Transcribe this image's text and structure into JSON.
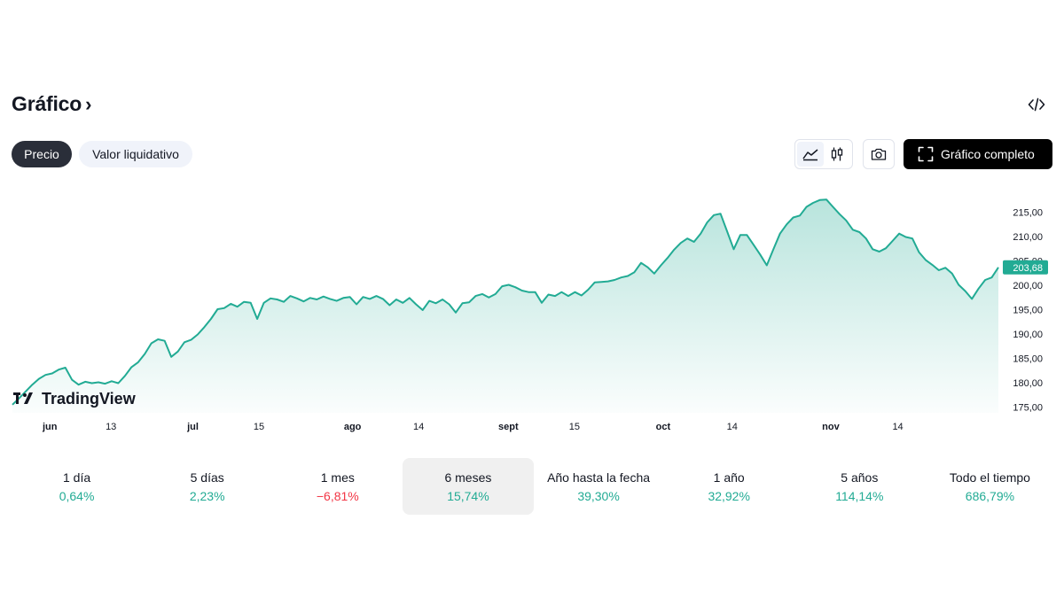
{
  "header": {
    "title": "Gráfico",
    "chevron": "›"
  },
  "icons": {
    "embed": "code-icon",
    "area": "area-chart-icon",
    "candles": "candlestick-icon",
    "camera": "camera-icon",
    "fullscreen": "fullscreen-icon"
  },
  "tabs": {
    "price": "Precio",
    "nav": "Valor liquidativo"
  },
  "toolbar": {
    "full_chart_label": "Gráfico completo"
  },
  "colors": {
    "line": "#22ab94",
    "positive": "#22ab94",
    "negative": "#f23645"
  },
  "chart_data": {
    "type": "area",
    "watermark": "TradingView",
    "x_tick_labels": [
      {
        "label": "jun",
        "bold": true,
        "t": 0.02
      },
      {
        "label": "13",
        "bold": false,
        "t": 0.1
      },
      {
        "label": "jul",
        "bold": true,
        "t": 0.183
      },
      {
        "label": "15",
        "bold": false,
        "t": 0.25
      },
      {
        "label": "ago",
        "bold": true,
        "t": 0.345
      },
      {
        "label": "14",
        "bold": false,
        "t": 0.412
      },
      {
        "label": "sept",
        "bold": true,
        "t": 0.503
      },
      {
        "label": "15",
        "bold": false,
        "t": 0.57
      },
      {
        "label": "oct",
        "bold": true,
        "t": 0.66
      },
      {
        "label": "14",
        "bold": false,
        "t": 0.73
      },
      {
        "label": "nov",
        "bold": true,
        "t": 0.83
      },
      {
        "label": "14",
        "bold": false,
        "t": 0.898
      }
    ],
    "y_ticks": [
      175,
      180,
      185,
      190,
      195,
      200,
      205,
      210,
      215
    ],
    "y_tick_labels": [
      "175,00",
      "180,00",
      "185,00",
      "190,00",
      "195,00",
      "200,00",
      "205,00",
      "210,00",
      "215,00"
    ],
    "ylim": [
      174,
      219
    ],
    "last_value": 203.68,
    "last_value_label": "203,68",
    "series": [
      {
        "values": [
          175.5,
          176.8,
          178.2,
          179.6,
          180.8,
          181.6,
          181.9,
          182.7,
          183.1,
          180.6,
          179.6,
          180.2,
          179.9,
          180.1,
          179.8,
          180.3,
          179.9,
          181.4,
          183.2,
          184.2,
          185.9,
          188.1,
          188.9,
          188.6,
          185.3,
          186.4,
          188.3,
          188.8,
          189.9,
          191.4,
          193.1,
          195.1,
          195.3,
          196.2,
          195.6,
          196.6,
          196.4,
          193.1,
          196.4,
          197.3,
          197.1,
          196.6,
          197.8,
          197.3,
          196.7,
          197.4,
          197.1,
          197.7,
          197.2,
          196.8,
          197.4,
          197.6,
          196.1,
          197.6,
          197.2,
          197.8,
          197.2,
          195.9,
          197.1,
          196.4,
          197.4,
          196.1,
          194.9,
          196.8,
          196.3,
          197.1,
          196.1,
          194.4,
          196.3,
          196.5,
          197.8,
          198.2,
          197.5,
          198.2,
          199.8,
          200.1,
          199.6,
          198.9,
          198.6,
          198.6,
          196.4,
          198.1,
          197.8,
          198.6,
          197.8,
          198.6,
          197.9,
          199.1,
          200.6,
          200.7,
          200.8,
          201.1,
          201.6,
          201.9,
          202.7,
          204.6,
          203.7,
          202.4,
          204.1,
          205.6,
          207.3,
          208.7,
          209.6,
          208.9,
          210.6,
          212.9,
          214.4,
          214.7,
          211.1,
          207.4,
          210.3,
          210.3,
          208.3,
          206.3,
          204.1,
          207.4,
          210.6,
          212.5,
          213.9,
          214.3,
          216.1,
          216.9,
          217.5,
          217.6,
          216.1,
          214.6,
          213.3,
          211.4,
          210.9,
          209.6,
          207.4,
          206.9,
          207.6,
          209.1,
          210.6,
          209.9,
          209.6,
          206.8,
          205.2,
          204.2,
          203.1,
          203.6,
          202.4,
          200.1,
          198.8,
          197.2,
          199.3,
          201.1,
          201.6,
          203.68
        ]
      }
    ]
  },
  "periods": [
    {
      "label": "1 día",
      "value": "0,64%",
      "trend": "pos",
      "active": false
    },
    {
      "label": "5 días",
      "value": "2,23%",
      "trend": "pos",
      "active": false
    },
    {
      "label": "1 mes",
      "value": "−6,81%",
      "trend": "neg",
      "active": false
    },
    {
      "label": "6 meses",
      "value": "15,74%",
      "trend": "pos",
      "active": true
    },
    {
      "label": "Año hasta la fecha",
      "value": "39,30%",
      "trend": "pos",
      "active": false
    },
    {
      "label": "1 año",
      "value": "32,92%",
      "trend": "pos",
      "active": false
    },
    {
      "label": "5 años",
      "value": "114,14%",
      "trend": "pos",
      "active": false
    },
    {
      "label": "Todo el tiempo",
      "value": "686,79%",
      "trend": "pos",
      "active": false
    }
  ]
}
